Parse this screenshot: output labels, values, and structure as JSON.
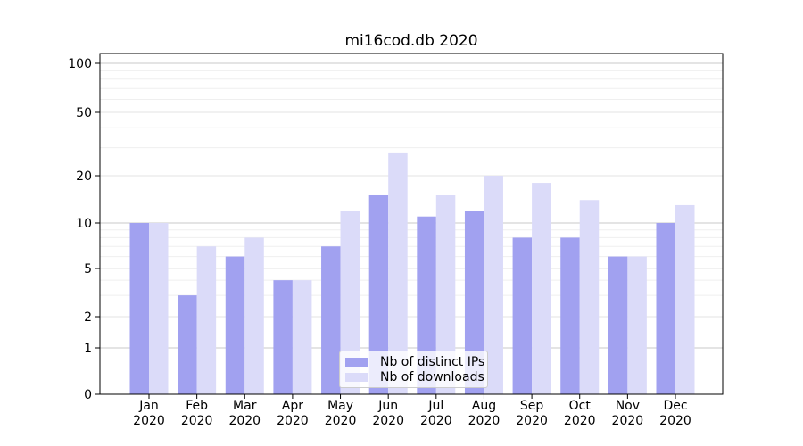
{
  "chart_data": {
    "type": "bar",
    "title": "mi16cod.db 2020",
    "categories": [
      "Jan",
      "Feb",
      "Mar",
      "Apr",
      "May",
      "Jun",
      "Jul",
      "Aug",
      "Sep",
      "Oct",
      "Nov",
      "Dec"
    ],
    "category_year": "2020",
    "series": [
      {
        "name": "Nb of distinct IPs",
        "color": "#a1a1f0",
        "values": [
          10,
          3,
          6,
          4,
          7,
          15,
          11,
          12,
          8,
          8,
          6,
          10
        ]
      },
      {
        "name": "Nb of downloads",
        "color": "#dbdbf9",
        "values": [
          10,
          7,
          8,
          4,
          12,
          28,
          15,
          20,
          18,
          14,
          6,
          13
        ]
      }
    ],
    "yscale": "asinh",
    "yticks": [
      0,
      1,
      2,
      5,
      10,
      20,
      50,
      100
    ],
    "minor_yticks": [
      3,
      4,
      6,
      7,
      8,
      9,
      30,
      40,
      60,
      70,
      80,
      90
    ],
    "ylim": [
      0,
      115
    ],
    "xlabel": "",
    "ylabel": "",
    "grid": "horizontal",
    "legend_position": "lower center"
  },
  "colors": {
    "background": "#ffffff",
    "grid_major": "#c9c9c9",
    "grid_mid": "#e3e3e3",
    "grid_minor": "#efefef",
    "spine": "#000000",
    "text": "#000000",
    "legend_border": "#cccccc"
  }
}
